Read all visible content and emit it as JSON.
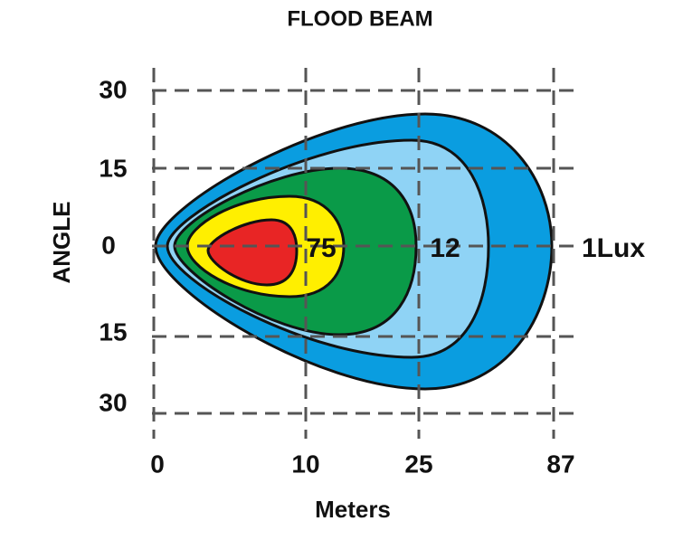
{
  "title": "FLOOD  BEAM",
  "y_axis": {
    "label": "ANGLE",
    "ticks": [
      "30",
      "15",
      "0",
      "15",
      "30"
    ]
  },
  "x_axis": {
    "label": "Meters",
    "ticks": [
      "0",
      "10",
      "25",
      "87"
    ]
  },
  "contour_labels": [
    "75",
    "12",
    "1Lux"
  ]
}
